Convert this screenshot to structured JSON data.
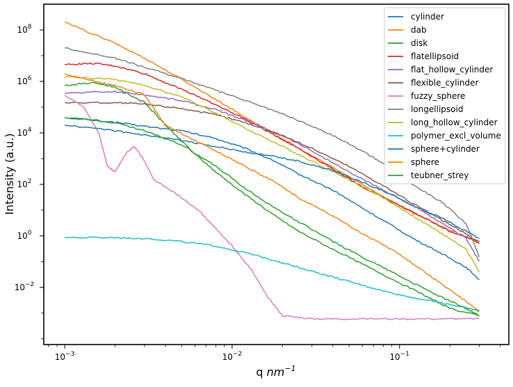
{
  "chart_data": {
    "type": "line",
    "title": "",
    "xlabel": "q",
    "xlabel_unit_html": "nm",
    "xlabel_unit_exp": "−1",
    "ylabel": "Intensity (a.u.)",
    "xscale": "log",
    "yscale": "log",
    "xlim": [
      0.00075,
      0.45
    ],
    "ylim": [
      6e-05,
      1000000000.0
    ],
    "xticks": [
      {
        "value": 0.001,
        "base": "10",
        "exp": "−3"
      },
      {
        "value": 0.01,
        "base": "10",
        "exp": "−2"
      },
      {
        "value": 0.1,
        "base": "10",
        "exp": "−1"
      }
    ],
    "yticks": [
      {
        "value": 0.01,
        "base": "10",
        "exp": "−2"
      },
      {
        "value": 1,
        "base": "10",
        "exp": "0"
      },
      {
        "value": 100,
        "base": "10",
        "exp": "2"
      },
      {
        "value": 10000,
        "base": "10",
        "exp": "4"
      },
      {
        "value": 1000000,
        "base": "10",
        "exp": "6"
      },
      {
        "value": 100000000,
        "base": "10",
        "exp": "8"
      }
    ],
    "legend_position": "top-right",
    "grid": false,
    "series": [
      {
        "name": "cylinder",
        "color": "#1f77b4",
        "x": [
          0.001,
          0.002,
          0.003,
          0.005,
          0.008,
          0.012,
          0.018,
          0.025,
          0.04,
          0.06,
          0.09,
          0.12,
          0.18,
          0.25,
          0.3
        ],
        "y": [
          40000,
          26000,
          18000,
          12000,
          6000,
          2500,
          800,
          250,
          60,
          12,
          2.5,
          0.8,
          0.2,
          0.06,
          0.02
        ]
      },
      {
        "name": "dab",
        "color": "#ff7f0e",
        "x": [
          0.001,
          0.002,
          0.003,
          0.005,
          0.008,
          0.012,
          0.018,
          0.025,
          0.04,
          0.06,
          0.09,
          0.12,
          0.18,
          0.25,
          0.3
        ],
        "y": [
          200000000.0,
          30000000.0,
          8000000.0,
          1200000.0,
          200000.0,
          40000.0,
          9000,
          2500,
          450,
          100,
          22,
          8,
          2.2,
          0.9,
          0.5
        ]
      },
      {
        "name": "disk",
        "color": "#2ca02c",
        "x": [
          0.001,
          0.0015,
          0.002,
          0.003,
          0.004,
          0.006,
          0.008,
          0.012,
          0.018,
          0.025,
          0.04,
          0.06,
          0.1,
          0.15,
          0.2,
          0.3
        ],
        "y": [
          700000,
          900000,
          600000,
          150000,
          20000,
          1500,
          300,
          40,
          6,
          1.5,
          0.3,
          0.08,
          0.015,
          0.004,
          0.0015,
          0.0008
        ]
      },
      {
        "name": "flatellipsoid",
        "color": "#d62728",
        "x": [
          0.001,
          0.0015,
          0.002,
          0.003,
          0.004,
          0.006,
          0.008,
          0.012,
          0.018,
          0.025,
          0.04,
          0.06,
          0.1,
          0.15,
          0.2,
          0.3
        ],
        "y": [
          4500000.0,
          5000000.0,
          4000000.0,
          2000000.0,
          900000,
          300000,
          120000,
          35000,
          8000,
          2500,
          400,
          80,
          15,
          4,
          1.5,
          0.6
        ]
      },
      {
        "name": "flat_hollow_cylinder",
        "color": "#9467bd",
        "x": [
          0.001,
          0.002,
          0.003,
          0.005,
          0.008,
          0.012,
          0.02,
          0.03,
          0.05,
          0.08,
          0.12,
          0.18,
          0.25,
          0.3
        ],
        "y": [
          350000,
          400000,
          300000,
          180000,
          80000,
          30000,
          8000,
          2000,
          300,
          60,
          15,
          3,
          0.8,
          0.1
        ]
      },
      {
        "name": "flexible_cylinder",
        "color": "#8c564b",
        "x": [
          0.001,
          0.002,
          0.003,
          0.005,
          0.008,
          0.012,
          0.02,
          0.03,
          0.05,
          0.08,
          0.12,
          0.18,
          0.25,
          0.3
        ],
        "y": [
          150000,
          150000,
          130000,
          90000,
          50000,
          25000,
          8000,
          2500,
          500,
          90,
          18,
          4,
          1.2,
          0.5
        ]
      },
      {
        "name": "fuzzy_sphere",
        "color": "#e377c2",
        "x": [
          0.001,
          0.0013,
          0.0016,
          0.0018,
          0.002,
          0.0023,
          0.0026,
          0.003,
          0.0034,
          0.004,
          0.005,
          0.0065,
          0.008,
          0.01,
          0.013,
          0.016,
          0.02,
          0.03,
          0.05,
          0.1,
          0.2,
          0.3
        ],
        "y": [
          300000,
          100000,
          10000,
          500,
          300,
          1500,
          3000,
          800,
          150,
          80,
          30,
          8,
          2,
          0.4,
          0.05,
          0.005,
          0.0008,
          0.0006,
          0.0006,
          0.0006,
          0.0006,
          0.0006
        ]
      },
      {
        "name": "longellipsoid",
        "color": "#7f7f7f",
        "x": [
          0.001,
          0.002,
          0.003,
          0.005,
          0.008,
          0.012,
          0.018,
          0.025,
          0.04,
          0.06,
          0.09,
          0.12,
          0.18,
          0.25,
          0.3
        ],
        "y": [
          20000000.0,
          8000000.0,
          3500000.0,
          1300000.0,
          450000,
          180000,
          70000,
          30000,
          8000,
          2000,
          400,
          100,
          20,
          3,
          0.15
        ]
      },
      {
        "name": "long_hollow_cylinder",
        "color": "#bcbd22",
        "x": [
          0.001,
          0.002,
          0.003,
          0.005,
          0.008,
          0.012,
          0.02,
          0.03,
          0.05,
          0.08,
          0.12,
          0.18,
          0.25,
          0.3
        ],
        "y": [
          1500000.0,
          1200000.0,
          700000,
          250000,
          60000,
          15000,
          3000,
          800,
          150,
          30,
          6,
          1.2,
          0.3,
          0.04
        ]
      },
      {
        "name": "polymer_excl_volume",
        "color": "#17becf",
        "x": [
          0.001,
          0.002,
          0.003,
          0.005,
          0.008,
          0.012,
          0.018,
          0.025,
          0.04,
          0.06,
          0.09,
          0.12,
          0.18,
          0.25,
          0.3
        ],
        "y": [
          0.85,
          0.85,
          0.8,
          0.6,
          0.4,
          0.22,
          0.11,
          0.06,
          0.025,
          0.012,
          0.006,
          0.004,
          0.0025,
          0.0016,
          0.0012
        ]
      },
      {
        "name": "sphere+cylinder",
        "color": "#1f77b4",
        "x": [
          0.001,
          0.002,
          0.003,
          0.005,
          0.008,
          0.012,
          0.018,
          0.025,
          0.04,
          0.06,
          0.09,
          0.12,
          0.18,
          0.25,
          0.3
        ],
        "y": [
          20000,
          12000,
          8000,
          5000,
          3000,
          1800,
          1200,
          800,
          350,
          120,
          40,
          15,
          5,
          1.5,
          0.8
        ]
      },
      {
        "name": "sphere",
        "color": "#ff7f0e",
        "x": [
          0.001,
          0.0015,
          0.002,
          0.003,
          0.004,
          0.006,
          0.008,
          0.012,
          0.018,
          0.025,
          0.04,
          0.06,
          0.1,
          0.15,
          0.2,
          0.3
        ],
        "y": [
          2000000.0,
          1000000.0,
          700000,
          300000,
          20000,
          5000,
          2000,
          500,
          120,
          30,
          6,
          1.2,
          0.2,
          0.03,
          0.008,
          0.0012
        ]
      },
      {
        "name": "teubner_strey",
        "color": "#2ca02c",
        "x": [
          0.001,
          0.002,
          0.003,
          0.005,
          0.008,
          0.012,
          0.018,
          0.025,
          0.04,
          0.06,
          0.09,
          0.12,
          0.18,
          0.25,
          0.3
        ],
        "y": [
          40000,
          25000,
          12000,
          3500,
          500,
          70,
          12,
          3.5,
          0.6,
          0.15,
          0.04,
          0.015,
          0.004,
          0.0015,
          0.0008
        ]
      }
    ]
  }
}
